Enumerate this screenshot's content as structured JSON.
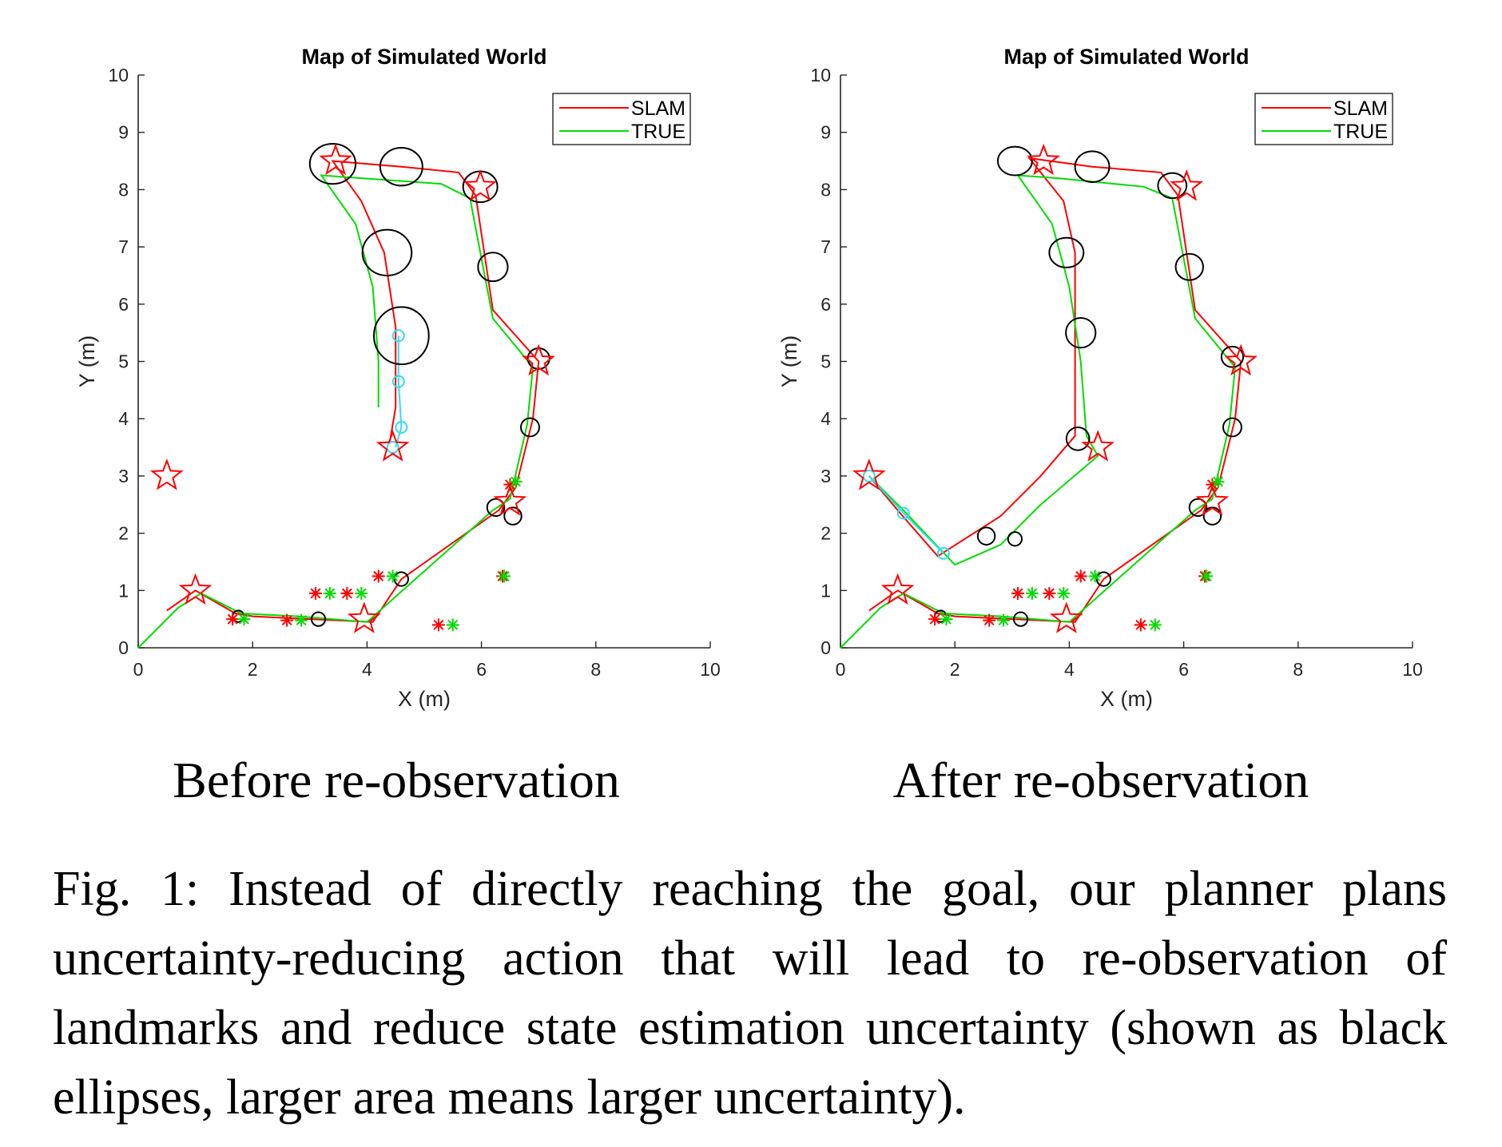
{
  "chart_data": [
    {
      "type": "line",
      "title": "Map of Simulated World",
      "xlabel": "X (m)",
      "ylabel": "Y (m)",
      "xlim": [
        0,
        10
      ],
      "ylim": [
        0,
        10
      ],
      "xticks": [
        0,
        2,
        4,
        6,
        8,
        10
      ],
      "yticks": [
        0,
        1,
        2,
        3,
        4,
        5,
        6,
        7,
        8,
        9,
        10
      ],
      "legend": {
        "placement": "top-right",
        "entries": [
          "SLAM",
          "TRUE"
        ]
      },
      "colors": {
        "slam": "#ff0000",
        "true": "#00dd00",
        "plan": "#33ddee",
        "ellipse": "#000000"
      },
      "series": [
        {
          "name": "SLAM",
          "color": "#ff0000",
          "points": [
            [
              0.5,
              0.65
            ],
            [
              1,
              1
            ],
            [
              1.7,
              0.6
            ],
            [
              2,
              0.55
            ],
            [
              3,
              0.5
            ],
            [
              4.1,
              0.45
            ],
            [
              4.6,
              1.2
            ],
            [
              6.3,
              2.4
            ],
            [
              6.6,
              2.8
            ],
            [
              6.9,
              4
            ],
            [
              7,
              5
            ],
            [
              6.2,
              5.9
            ],
            [
              5.9,
              7.9
            ],
            [
              5.6,
              8.3
            ],
            [
              4.6,
              8.4
            ],
            [
              3.4,
              8.5
            ],
            [
              3.9,
              7.8
            ],
            [
              4.3,
              6.9
            ],
            [
              4.5,
              5.6
            ],
            [
              4.5,
              4.2
            ],
            [
              4.4,
              3.6
            ]
          ]
        },
        {
          "name": "TRUE",
          "color": "#00dd00",
          "points": [
            [
              0,
              0
            ],
            [
              0.7,
              0.7
            ],
            [
              1.1,
              0.95
            ],
            [
              1.8,
              0.6
            ],
            [
              2.8,
              0.55
            ],
            [
              4,
              0.45
            ],
            [
              6.2,
              2.4
            ],
            [
              6.5,
              2.6
            ],
            [
              6.8,
              3.9
            ],
            [
              6.9,
              4.9
            ],
            [
              6.2,
              5.75
            ],
            [
              5.8,
              7.85
            ],
            [
              5.3,
              8.1
            ],
            [
              3.9,
              8.2
            ],
            [
              3.2,
              8.25
            ],
            [
              3.8,
              7.4
            ],
            [
              4.1,
              6.3
            ],
            [
              4.2,
              5
            ],
            [
              4.2,
              4.2
            ]
          ]
        },
        {
          "name": "",
          "color": "#33ddee",
          "points": [
            [
              4.55,
              5.45
            ],
            [
              4.55,
              4.65
            ],
            [
              4.6,
              3.85
            ],
            [
              4.5,
              3.5
            ]
          ]
        }
      ],
      "ellipses": [
        [
          3.4,
          8.45,
          0.4,
          0.35
        ],
        [
          4.6,
          8.4,
          0.37,
          0.33
        ],
        [
          5.98,
          8.05,
          0.3,
          0.27
        ],
        [
          4.35,
          6.9,
          0.43,
          0.4
        ],
        [
          6.2,
          6.65,
          0.26,
          0.25
        ],
        [
          4.6,
          5.45,
          0.48,
          0.5
        ],
        [
          7,
          5.05,
          0.19,
          0.18
        ],
        [
          6.85,
          3.85,
          0.16,
          0.16
        ],
        [
          6.25,
          2.45,
          0.15,
          0.15
        ],
        [
          6.55,
          2.3,
          0.15,
          0.15
        ],
        [
          4.6,
          1.2,
          0.12,
          0.12
        ],
        [
          3.15,
          0.5,
          0.12,
          0.12
        ],
        [
          1.75,
          0.55,
          0.1,
          0.1
        ]
      ],
      "plan_circles": [
        [
          4.55,
          5.45
        ],
        [
          4.55,
          4.65
        ],
        [
          4.6,
          3.85
        ],
        [
          4.45,
          3.5
        ]
      ],
      "stars": [
        [
          3.45,
          8.5
        ],
        [
          5.98,
          8.05
        ],
        [
          7,
          5
        ],
        [
          4.45,
          3.5
        ],
        [
          0.5,
          3
        ],
        [
          6.5,
          2.55
        ],
        [
          1,
          1
        ],
        [
          3.95,
          0.5
        ]
      ],
      "asterisks_red": [
        [
          3.1,
          0.95
        ],
        [
          3.65,
          0.95
        ],
        [
          4.2,
          1.25
        ],
        [
          5.25,
          0.4
        ],
        [
          1.65,
          0.5
        ],
        [
          2.6,
          0.48
        ],
        [
          6.5,
          2.85
        ],
        [
          6.37,
          1.25
        ]
      ],
      "asterisks_green": [
        [
          3.35,
          0.95
        ],
        [
          3.9,
          0.95
        ],
        [
          4.45,
          1.25
        ],
        [
          5.5,
          0.4
        ],
        [
          1.85,
          0.5
        ],
        [
          2.85,
          0.48
        ],
        [
          6.6,
          2.9
        ],
        [
          6.4,
          1.25
        ]
      ]
    },
    {
      "type": "line",
      "title": "Map of Simulated World",
      "xlabel": "X (m)",
      "ylabel": "Y (m)",
      "xlim": [
        0,
        10
      ],
      "ylim": [
        0,
        10
      ],
      "xticks": [
        0,
        2,
        4,
        6,
        8,
        10
      ],
      "yticks": [
        0,
        1,
        2,
        3,
        4,
        5,
        6,
        7,
        8,
        9,
        10
      ],
      "legend": {
        "placement": "top-right",
        "entries": [
          "SLAM",
          "TRUE"
        ]
      },
      "colors": {
        "slam": "#ff0000",
        "true": "#00dd00",
        "plan": "#33ddee",
        "ellipse": "#000000"
      },
      "series": [
        {
          "name": "SLAM",
          "color": "#ff0000",
          "points": [
            [
              0.5,
              0.65
            ],
            [
              1,
              1
            ],
            [
              1.7,
              0.6
            ],
            [
              2,
              0.55
            ],
            [
              3,
              0.5
            ],
            [
              4.1,
              0.45
            ],
            [
              4.6,
              1.2
            ],
            [
              6.3,
              2.4
            ],
            [
              6.6,
              2.8
            ],
            [
              6.9,
              4
            ],
            [
              7,
              5
            ],
            [
              6.2,
              5.9
            ],
            [
              5.9,
              7.9
            ],
            [
              5.6,
              8.3
            ],
            [
              4.4,
              8.4
            ],
            [
              3.3,
              8.55
            ],
            [
              3.9,
              7.8
            ],
            [
              4.1,
              6.9
            ],
            [
              4.1,
              5.5
            ],
            [
              4.1,
              3.7
            ],
            [
              3.5,
              3
            ],
            [
              2.8,
              2.3
            ],
            [
              1.7,
              1.6
            ],
            [
              1,
              2.4
            ],
            [
              0.5,
              3
            ]
          ]
        },
        {
          "name": "TRUE",
          "color": "#00dd00",
          "points": [
            [
              0,
              0
            ],
            [
              0.7,
              0.7
            ],
            [
              1.1,
              0.95
            ],
            [
              1.8,
              0.6
            ],
            [
              2.8,
              0.55
            ],
            [
              4,
              0.45
            ],
            [
              6.2,
              2.4
            ],
            [
              6.5,
              2.6
            ],
            [
              6.8,
              3.9
            ],
            [
              6.9,
              4.9
            ],
            [
              6.2,
              5.75
            ],
            [
              5.8,
              7.85
            ],
            [
              5.3,
              8.05
            ],
            [
              3.8,
              8.2
            ],
            [
              3.1,
              8.25
            ],
            [
              3.7,
              7.4
            ],
            [
              4,
              6.3
            ],
            [
              4.2,
              5.0
            ],
            [
              4.3,
              3.7
            ],
            [
              4.5,
              3.35
            ],
            [
              3.5,
              2.5
            ],
            [
              2.8,
              1.8
            ],
            [
              2,
              1.45
            ],
            [
              1.1,
              2.4
            ],
            [
              0.5,
              3
            ]
          ]
        },
        {
          "name": "",
          "color": "#33ddee",
          "points": [
            [
              0.5,
              3
            ],
            [
              1.1,
              2.35
            ],
            [
              1.8,
              1.65
            ]
          ]
        }
      ],
      "ellipses": [
        [
          3.05,
          8.5,
          0.3,
          0.25
        ],
        [
          4.4,
          8.4,
          0.3,
          0.27
        ],
        [
          5.8,
          8.07,
          0.25,
          0.22
        ],
        [
          3.95,
          6.9,
          0.3,
          0.26
        ],
        [
          6.1,
          6.65,
          0.24,
          0.23
        ],
        [
          4.2,
          5.5,
          0.26,
          0.26
        ],
        [
          6.85,
          5.08,
          0.19,
          0.18
        ],
        [
          6.85,
          3.85,
          0.16,
          0.16
        ],
        [
          4.15,
          3.65,
          0.2,
          0.2
        ],
        [
          6.25,
          2.45,
          0.15,
          0.15
        ],
        [
          6.5,
          2.3,
          0.15,
          0.15
        ],
        [
          2.55,
          1.95,
          0.15,
          0.15
        ],
        [
          3.05,
          1.9,
          0.12,
          0.12
        ],
        [
          4.6,
          1.2,
          0.12,
          0.12
        ],
        [
          3.15,
          0.5,
          0.12,
          0.12
        ],
        [
          1.75,
          0.55,
          0.1,
          0.1
        ]
      ],
      "plan_circles": [
        [
          0.5,
          3
        ],
        [
          1.1,
          2.35
        ],
        [
          1.8,
          1.65
        ]
      ],
      "stars": [
        [
          3.55,
          8.5
        ],
        [
          6.05,
          8.05
        ],
        [
          7,
          5
        ],
        [
          4.5,
          3.5
        ],
        [
          0.5,
          3
        ],
        [
          6.5,
          2.55
        ],
        [
          1,
          1
        ],
        [
          3.95,
          0.5
        ]
      ],
      "asterisks_red": [
        [
          3.1,
          0.95
        ],
        [
          3.65,
          0.95
        ],
        [
          4.2,
          1.25
        ],
        [
          5.25,
          0.4
        ],
        [
          1.65,
          0.5
        ],
        [
          2.6,
          0.48
        ],
        [
          6.5,
          2.85
        ],
        [
          6.37,
          1.25
        ]
      ],
      "asterisks_green": [
        [
          3.35,
          0.95
        ],
        [
          3.9,
          0.95
        ],
        [
          4.45,
          1.25
        ],
        [
          5.5,
          0.4
        ],
        [
          1.85,
          0.5
        ],
        [
          2.85,
          0.48
        ],
        [
          6.6,
          2.9
        ],
        [
          6.4,
          1.25
        ]
      ]
    }
  ],
  "captions": {
    "left": "Before re-observation",
    "right": "After re-observation",
    "figure": "Fig. 1: Instead of directly reaching the goal, our planner plans uncertainty-reducing action that will lead to re-observation of landmarks and reduce state estimation uncertainty (shown as black ellipses, larger area means larger uncertainty)."
  }
}
